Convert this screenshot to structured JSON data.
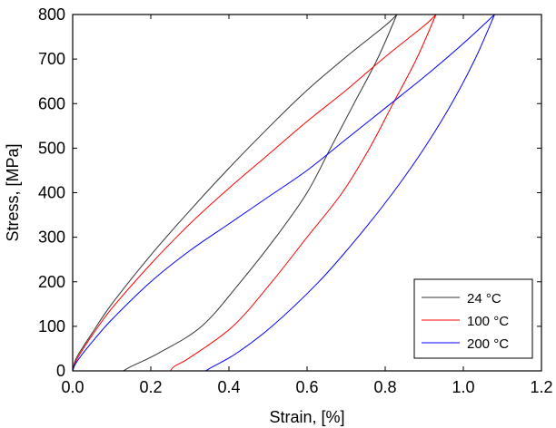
{
  "chart_data": {
    "type": "line",
    "title": "",
    "xlabel": "Strain, [%]",
    "ylabel": "Stress, [MPa]",
    "xlim": [
      0.0,
      1.2
    ],
    "ylim": [
      0,
      800
    ],
    "x_ticks": [
      "0.0",
      "0.2",
      "0.4",
      "0.6",
      "0.8",
      "1.0",
      "1.2"
    ],
    "y_ticks": [
      "0",
      "100",
      "200",
      "300",
      "400",
      "500",
      "600",
      "700",
      "800"
    ],
    "grid": false,
    "legend_position": "bottom-right",
    "series": [
      {
        "name": "24 °C",
        "color": "#333333",
        "loading": [
          [
            0.0,
            0
          ],
          [
            0.01,
            30
          ],
          [
            0.05,
            85
          ],
          [
            0.1,
            150
          ],
          [
            0.2,
            260
          ],
          [
            0.3,
            360
          ],
          [
            0.4,
            455
          ],
          [
            0.5,
            545
          ],
          [
            0.6,
            630
          ],
          [
            0.7,
            705
          ],
          [
            0.8,
            775
          ],
          [
            0.83,
            800
          ]
        ],
        "unloading": [
          [
            0.83,
            800
          ],
          [
            0.78,
            700
          ],
          [
            0.72,
            600
          ],
          [
            0.66,
            500
          ],
          [
            0.6,
            400
          ],
          [
            0.52,
            300
          ],
          [
            0.43,
            200
          ],
          [
            0.33,
            100
          ],
          [
            0.22,
            40
          ],
          [
            0.15,
            10
          ],
          [
            0.13,
            0
          ]
        ]
      },
      {
        "name": "100 °C",
        "color": "#ff0000",
        "loading": [
          [
            0.0,
            0
          ],
          [
            0.01,
            25
          ],
          [
            0.05,
            80
          ],
          [
            0.1,
            140
          ],
          [
            0.2,
            240
          ],
          [
            0.3,
            330
          ],
          [
            0.4,
            410
          ],
          [
            0.5,
            485
          ],
          [
            0.6,
            560
          ],
          [
            0.7,
            630
          ],
          [
            0.8,
            705
          ],
          [
            0.9,
            775
          ],
          [
            0.93,
            800
          ]
        ],
        "unloading": [
          [
            0.93,
            800
          ],
          [
            0.88,
            700
          ],
          [
            0.82,
            600
          ],
          [
            0.76,
            500
          ],
          [
            0.69,
            400
          ],
          [
            0.6,
            300
          ],
          [
            0.51,
            200
          ],
          [
            0.41,
            100
          ],
          [
            0.3,
            30
          ],
          [
            0.26,
            10
          ],
          [
            0.25,
            0
          ]
        ]
      },
      {
        "name": "200 °C",
        "color": "#0000ff",
        "loading": [
          [
            0.0,
            0
          ],
          [
            0.01,
            20
          ],
          [
            0.05,
            65
          ],
          [
            0.1,
            115
          ],
          [
            0.2,
            200
          ],
          [
            0.3,
            270
          ],
          [
            0.4,
            330
          ],
          [
            0.5,
            390
          ],
          [
            0.6,
            450
          ],
          [
            0.7,
            520
          ],
          [
            0.8,
            590
          ],
          [
            0.9,
            660
          ],
          [
            1.0,
            735
          ],
          [
            1.08,
            800
          ]
        ],
        "unloading": [
          [
            1.08,
            800
          ],
          [
            1.03,
            700
          ],
          [
            0.97,
            600
          ],
          [
            0.9,
            500
          ],
          [
            0.82,
            400
          ],
          [
            0.73,
            300
          ],
          [
            0.63,
            200
          ],
          [
            0.51,
            100
          ],
          [
            0.42,
            40
          ],
          [
            0.36,
            10
          ],
          [
            0.34,
            0
          ]
        ]
      }
    ]
  }
}
